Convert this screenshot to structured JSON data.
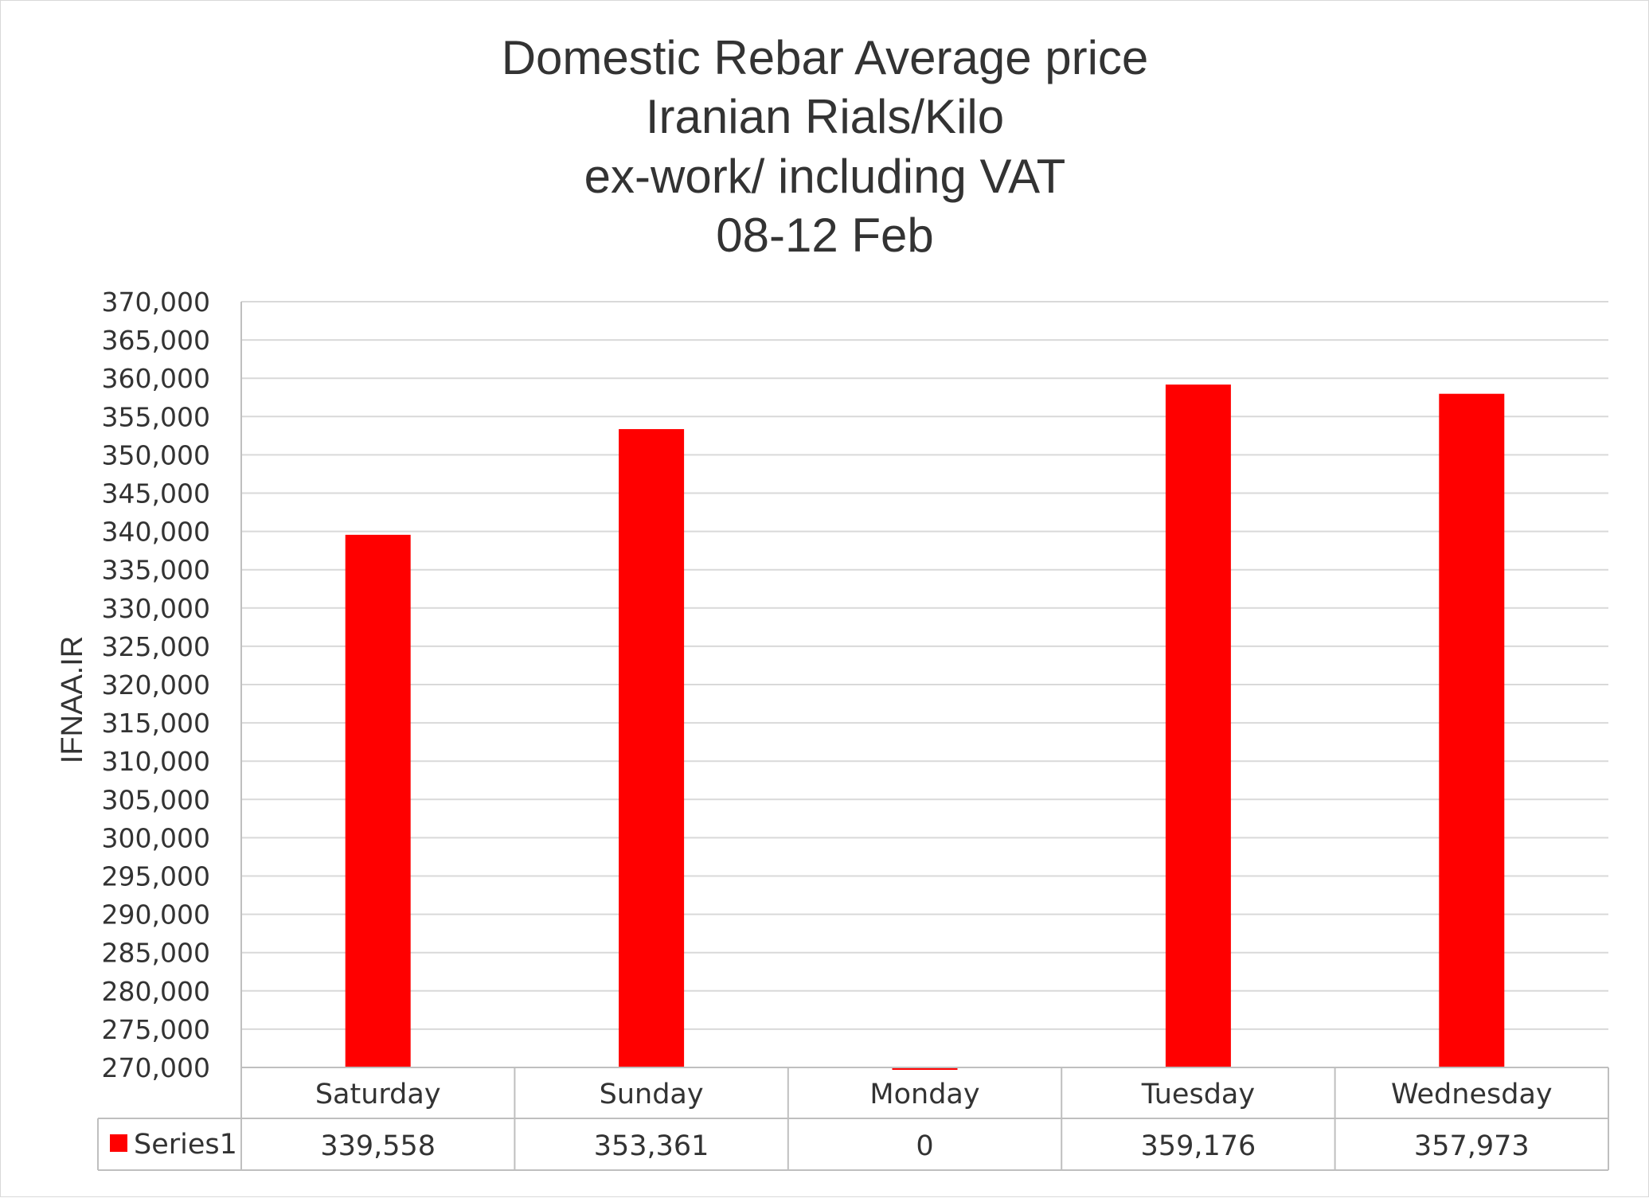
{
  "chart_data": {
    "type": "bar",
    "title": [
      "Domestic Rebar Average price",
      "Iranian Rials/Kilo",
      "ex-work/ including VAT",
      "08-12 Feb"
    ],
    "xlabel": "",
    "ylabel": "IFNAA.IR",
    "ylim": [
      270000,
      370000
    ],
    "ytick_step": 5000,
    "y_ticks": [
      "370,000",
      "365,000",
      "360,000",
      "355,000",
      "350,000",
      "345,000",
      "340,000",
      "335,000",
      "330,000",
      "325,000",
      "320,000",
      "315,000",
      "310,000",
      "305,000",
      "300,000",
      "295,000",
      "290,000",
      "285,000",
      "280,000",
      "275,000",
      "270,000"
    ],
    "categories": [
      "Saturday",
      "Sunday",
      "Monday",
      "Tuesday",
      "Wednesday"
    ],
    "series": [
      {
        "name": "Series1",
        "color": "#ff0000",
        "values": [
          339558,
          353361,
          0,
          359176,
          357973
        ],
        "value_labels": [
          "339,558",
          "353,361",
          "0",
          "359,176",
          "357,973"
        ]
      }
    ],
    "grid": true,
    "legend": "data-table-left",
    "gridline_color": "#d9d9d9",
    "axis_color": "#bfbfbf"
  }
}
